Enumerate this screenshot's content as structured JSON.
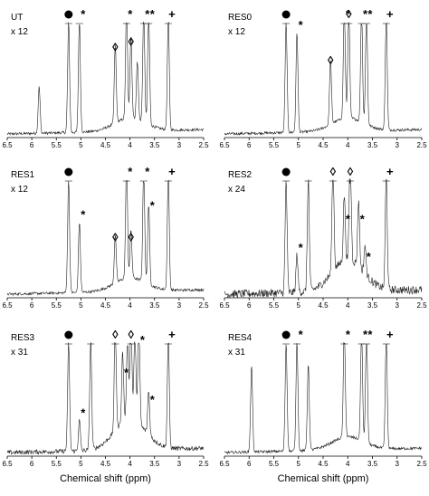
{
  "figure": {
    "xlabel": "Chemical shift (ppm)"
  },
  "chart_data": [
    {
      "type": "line",
      "sample": "UT",
      "scale": "x 12",
      "xlim": [
        6.5,
        2.5
      ],
      "x_reversed": true,
      "xticks": [
        6.5,
        6,
        5.5,
        5,
        4.5,
        4,
        3.5,
        3,
        2.5
      ],
      "xlabel": "",
      "peaks": [
        {
          "ppm": 5.85,
          "height": 0.42
        },
        {
          "ppm": 5.25,
          "height": 1.0
        },
        {
          "ppm": 5.03,
          "height": 1.0
        },
        {
          "ppm": 4.3,
          "height": 0.7
        },
        {
          "ppm": 4.07,
          "height": 1.0
        },
        {
          "ppm": 3.98,
          "height": 0.75
        },
        {
          "ppm": 3.85,
          "height": 0.52
        },
        {
          "ppm": 3.72,
          "height": 1.0
        },
        {
          "ppm": 3.62,
          "height": 1.0
        },
        {
          "ppm": 3.22,
          "height": 1.0
        }
      ],
      "markers": [
        {
          "ppm": 5.25,
          "symbol": "●",
          "height": 1.0
        },
        {
          "ppm": 5.03,
          "symbol": "*",
          "height": 1.0
        },
        {
          "ppm": 4.3,
          "symbol": "◊",
          "height": 0.7
        },
        {
          "ppm": 4.07,
          "symbol": "*",
          "height": 1.0
        },
        {
          "ppm": 3.98,
          "symbol": "◊",
          "height": 0.75
        },
        {
          "ppm": 3.72,
          "symbol": "*",
          "height": 1.0
        },
        {
          "ppm": 3.62,
          "symbol": "*",
          "height": 1.0
        },
        {
          "ppm": 3.22,
          "symbol": "+",
          "height": 1.0
        }
      ]
    },
    {
      "type": "line",
      "sample": "RES0",
      "scale": "x 12",
      "xlim": [
        6.5,
        2.5
      ],
      "x_reversed": true,
      "xticks": [
        6.5,
        6,
        5.5,
        5,
        4.5,
        4,
        3.5,
        3,
        2.5
      ],
      "xlabel": "",
      "peaks": [
        {
          "ppm": 5.25,
          "height": 1.0
        },
        {
          "ppm": 5.03,
          "height": 0.9
        },
        {
          "ppm": 4.35,
          "height": 0.58
        },
        {
          "ppm": 4.07,
          "height": 1.0
        },
        {
          "ppm": 3.98,
          "height": 1.0
        },
        {
          "ppm": 3.72,
          "height": 1.0
        },
        {
          "ppm": 3.62,
          "height": 1.0
        },
        {
          "ppm": 3.22,
          "height": 1.0
        }
      ],
      "markers": [
        {
          "ppm": 5.25,
          "symbol": "●",
          "height": 1.0
        },
        {
          "ppm": 5.03,
          "symbol": "*",
          "height": 0.9
        },
        {
          "ppm": 4.35,
          "symbol": "◊",
          "height": 0.58
        },
        {
          "ppm": 4.07,
          "symbol": "*",
          "height": 1.0
        },
        {
          "ppm": 3.98,
          "symbol": "◊",
          "height": 1.0
        },
        {
          "ppm": 3.72,
          "symbol": "*",
          "height": 1.0
        },
        {
          "ppm": 3.62,
          "symbol": "*",
          "height": 1.0
        },
        {
          "ppm": 3.22,
          "symbol": "+",
          "height": 1.0
        }
      ]
    },
    {
      "type": "line",
      "sample": "RES1",
      "scale": "x 12",
      "xlim": [
        6.5,
        2.5
      ],
      "x_reversed": true,
      "xticks": [
        6.5,
        6,
        5.5,
        5,
        4.5,
        4,
        3.5,
        3,
        2.5
      ],
      "xlabel": "",
      "peaks": [
        {
          "ppm": 5.25,
          "height": 1.0
        },
        {
          "ppm": 5.03,
          "height": 0.62
        },
        {
          "ppm": 4.3,
          "height": 0.42
        },
        {
          "ppm": 4.07,
          "height": 1.0
        },
        {
          "ppm": 3.98,
          "height": 0.42
        },
        {
          "ppm": 3.72,
          "height": 1.0
        },
        {
          "ppm": 3.62,
          "height": 0.7
        },
        {
          "ppm": 3.22,
          "height": 1.0
        }
      ],
      "markers": [
        {
          "ppm": 5.25,
          "symbol": "●",
          "height": 1.0
        },
        {
          "ppm": 5.03,
          "symbol": "*",
          "height": 0.62
        },
        {
          "ppm": 4.3,
          "symbol": "◊",
          "height": 0.42
        },
        {
          "ppm": 4.07,
          "symbol": "*",
          "height": 1.0
        },
        {
          "ppm": 3.98,
          "symbol": "◊",
          "height": 0.42
        },
        {
          "ppm": 3.72,
          "symbol": "*",
          "height": 1.0
        },
        {
          "ppm": 3.62,
          "symbol": "*",
          "height": 0.7
        },
        {
          "ppm": 3.22,
          "symbol": "+",
          "height": 1.0
        }
      ]
    },
    {
      "type": "line",
      "sample": "RES2",
      "scale": "x 24",
      "xlim": [
        6.5,
        2.5
      ],
      "x_reversed": true,
      "xticks": [
        6.5,
        6,
        5.5,
        5,
        4.5,
        4,
        3.5,
        3,
        2.5
      ],
      "xlabel": "",
      "peaks": [
        {
          "ppm": 5.25,
          "height": 1.0
        },
        {
          "ppm": 5.03,
          "height": 0.33
        },
        {
          "ppm": 4.8,
          "height": 1.0
        },
        {
          "ppm": 4.3,
          "height": 1.0
        },
        {
          "ppm": 4.07,
          "height": 0.58
        },
        {
          "ppm": 3.95,
          "height": 1.0
        },
        {
          "ppm": 3.78,
          "height": 0.58
        },
        {
          "ppm": 3.65,
          "height": 0.25
        },
        {
          "ppm": 3.22,
          "height": 1.0
        }
      ],
      "markers": [
        {
          "ppm": 5.25,
          "symbol": "●",
          "height": 1.0
        },
        {
          "ppm": 5.03,
          "symbol": "*",
          "height": 0.33
        },
        {
          "ppm": 4.3,
          "symbol": "◊",
          "height": 1.0
        },
        {
          "ppm": 4.07,
          "symbol": "*",
          "height": 0.58
        },
        {
          "ppm": 3.95,
          "symbol": "◊",
          "height": 1.0
        },
        {
          "ppm": 3.78,
          "symbol": "*",
          "height": 0.58
        },
        {
          "ppm": 3.65,
          "symbol": "*",
          "height": 0.25
        },
        {
          "ppm": 3.22,
          "symbol": "+",
          "height": 1.0
        }
      ]
    },
    {
      "type": "line",
      "sample": "RES3",
      "scale": "x 31",
      "xlim": [
        6.5,
        2.5
      ],
      "x_reversed": true,
      "xticks": [
        6.5,
        6,
        5.5,
        5,
        4.5,
        4,
        3.5,
        3,
        2.5
      ],
      "xlabel": "Chemical shift (ppm)",
      "peaks": [
        {
          "ppm": 5.25,
          "height": 1.0
        },
        {
          "ppm": 5.03,
          "height": 0.28
        },
        {
          "ppm": 4.8,
          "height": 1.0
        },
        {
          "ppm": 4.3,
          "height": 1.0
        },
        {
          "ppm": 4.15,
          "height": 0.65
        },
        {
          "ppm": 4.05,
          "height": 0.78
        },
        {
          "ppm": 3.98,
          "height": 1.0
        },
        {
          "ppm": 3.9,
          "height": 0.85
        },
        {
          "ppm": 3.82,
          "height": 0.95
        },
        {
          "ppm": 3.62,
          "height": 0.4
        },
        {
          "ppm": 3.22,
          "height": 1.0
        }
      ],
      "markers": [
        {
          "ppm": 5.25,
          "symbol": "●",
          "height": 1.0
        },
        {
          "ppm": 5.03,
          "symbol": "*",
          "height": 0.28
        },
        {
          "ppm": 4.3,
          "symbol": "◊",
          "height": 1.0
        },
        {
          "ppm": 4.15,
          "symbol": "*",
          "height": 0.65
        },
        {
          "ppm": 3.98,
          "symbol": "◊",
          "height": 1.0
        },
        {
          "ppm": 3.82,
          "symbol": "*",
          "height": 0.95
        },
        {
          "ppm": 3.62,
          "symbol": "*",
          "height": 0.4
        },
        {
          "ppm": 3.22,
          "symbol": "+",
          "height": 1.0
        }
      ]
    },
    {
      "type": "line",
      "sample": "RES4",
      "scale": "x 31",
      "xlim": [
        6.5,
        2.5
      ],
      "x_reversed": true,
      "xticks": [
        6.5,
        6,
        5.5,
        5,
        4.5,
        4,
        3.5,
        3,
        2.5
      ],
      "xlabel": "Chemical shift (ppm)",
      "peaks": [
        {
          "ppm": 5.95,
          "height": 0.8
        },
        {
          "ppm": 5.25,
          "height": 1.0
        },
        {
          "ppm": 5.03,
          "height": 1.0
        },
        {
          "ppm": 4.8,
          "height": 0.8
        },
        {
          "ppm": 4.07,
          "height": 1.0
        },
        {
          "ppm": 3.72,
          "height": 1.0
        },
        {
          "ppm": 3.62,
          "height": 1.0
        },
        {
          "ppm": 3.22,
          "height": 1.0
        }
      ],
      "markers": [
        {
          "ppm": 5.25,
          "symbol": "●",
          "height": 1.0
        },
        {
          "ppm": 5.03,
          "symbol": "*",
          "height": 1.0
        },
        {
          "ppm": 4.07,
          "symbol": "*",
          "height": 1.0
        },
        {
          "ppm": 3.72,
          "symbol": "*",
          "height": 1.0
        },
        {
          "ppm": 3.62,
          "symbol": "*",
          "height": 1.0
        },
        {
          "ppm": 3.22,
          "symbol": "+",
          "height": 1.0
        }
      ]
    }
  ]
}
